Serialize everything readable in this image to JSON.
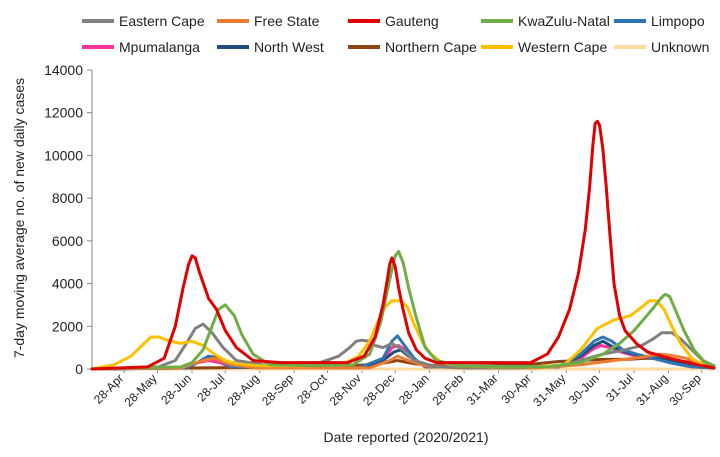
{
  "chart_data": {
    "type": "line",
    "title": "",
    "xlabel": "Date reported (2020/2021)",
    "ylabel": "7-day moving average no. of new daily cases",
    "ylim": [
      0,
      14000
    ],
    "yticks": [
      0,
      2000,
      4000,
      6000,
      8000,
      10000,
      12000,
      14000
    ],
    "ytick_labels": [
      "0",
      "2000",
      "4000",
      "6000",
      "8000",
      "10000",
      "12000",
      "14000"
    ],
    "x_tick_labels": [
      "28-Apr",
      "28-May",
      "28-Jun",
      "28-Jul",
      "28-Aug",
      "28-Sep",
      "28-Oct",
      "28-Nov",
      "28-Dec",
      "28-Jan",
      "28-Feb",
      "31-Mar",
      "30-Apr",
      "31-May",
      "30-Jun",
      "31-Jul",
      "31-Aug",
      "30-Sep"
    ],
    "x_tick_days": [
      29,
      59,
      90,
      120,
      151,
      182,
      212,
      243,
      273,
      304,
      335,
      366,
      396,
      427,
      457,
      488,
      519,
      549
    ],
    "x_axis_note": "x values are days, day 0 = 30-Mar-2020",
    "xlim": [
      0,
      560
    ],
    "grid": false,
    "legend": "top",
    "series": [
      {
        "name": "Eastern Cape",
        "color": "#808080",
        "x": [
          0,
          60,
          75,
          85,
          93,
          100,
          108,
          118,
          130,
          160,
          200,
          222,
          232,
          238,
          243,
          250,
          255,
          262,
          270,
          280,
          290,
          310,
          340,
          380,
          420,
          440,
          460,
          480,
          495,
          505,
          513,
          522,
          530,
          540,
          550,
          560
        ],
        "y": [
          0,
          100,
          400,
          1200,
          1900,
          2100,
          1700,
          1000,
          400,
          150,
          200,
          600,
          1000,
          1300,
          1350,
          1300,
          1100,
          1000,
          1200,
          900,
          400,
          100,
          50,
          50,
          150,
          400,
          700,
          900,
          1100,
          1400,
          1700,
          1700,
          1400,
          900,
          400,
          150
        ]
      },
      {
        "name": "Free State",
        "color": "#ED7D31",
        "x": [
          0,
          80,
          100,
          110,
          125,
          150,
          250,
          268,
          275,
          285,
          300,
          330,
          400,
          440,
          470,
          495,
          510,
          520,
          535,
          550,
          560
        ],
        "y": [
          0,
          50,
          400,
          500,
          200,
          50,
          50,
          400,
          600,
          400,
          150,
          50,
          50,
          200,
          400,
          550,
          700,
          650,
          500,
          250,
          100
        ]
      },
      {
        "name": "Gauteng",
        "color": "#E00000",
        "x": [
          0,
          50,
          65,
          75,
          82,
          87,
          90,
          93,
          97,
          105,
          112,
          120,
          130,
          145,
          170,
          200,
          230,
          245,
          255,
          262,
          266,
          268,
          270,
          273,
          276,
          280,
          285,
          292,
          300,
          310,
          330,
          360,
          395,
          410,
          420,
          430,
          438,
          444,
          448,
          451,
          453,
          455,
          457,
          460,
          463,
          466,
          470,
          475,
          480,
          490,
          500,
          520,
          545,
          560
        ],
        "y": [
          0,
          100,
          500,
          2000,
          3800,
          4900,
          5300,
          5200,
          4500,
          3300,
          2800,
          1800,
          1000,
          400,
          300,
          300,
          300,
          600,
          1500,
          3000,
          4200,
          4900,
          5200,
          4800,
          3800,
          2800,
          1700,
          900,
          500,
          300,
          300,
          300,
          300,
          700,
          1500,
          2800,
          4500,
          6500,
          8500,
          10500,
          11500,
          11600,
          11400,
          10300,
          8500,
          6500,
          4000,
          2500,
          1800,
          1200,
          800,
          500,
          200,
          50
        ]
      },
      {
        "name": "KwaZulu-Natal",
        "color": "#70AD47",
        "x": [
          0,
          80,
          90,
          100,
          108,
          114,
          120,
          128,
          135,
          145,
          160,
          200,
          235,
          250,
          260,
          268,
          273,
          276,
          280,
          285,
          292,
          300,
          310,
          330,
          370,
          410,
          440,
          460,
          475,
          488,
          498,
          506,
          512,
          516,
          520,
          525,
          533,
          542,
          552,
          560
        ],
        "y": [
          0,
          100,
          300,
          900,
          2000,
          2800,
          3000,
          2500,
          1600,
          700,
          200,
          150,
          200,
          700,
          2200,
          4200,
          5300,
          5500,
          5000,
          3800,
          2400,
          1000,
          400,
          150,
          100,
          100,
          300,
          700,
          1200,
          1800,
          2400,
          2900,
          3300,
          3500,
          3400,
          2800,
          1800,
          900,
          300,
          100
        ]
      },
      {
        "name": "Limpopo",
        "color": "#2E75B6",
        "x": [
          0,
          85,
          95,
          105,
          115,
          125,
          240,
          262,
          270,
          275,
          280,
          290,
          300,
          420,
          440,
          452,
          460,
          468,
          478,
          490,
          505,
          520,
          540,
          560
        ],
        "y": [
          0,
          50,
          300,
          600,
          400,
          100,
          50,
          500,
          1300,
          1550,
          1200,
          500,
          100,
          100,
          700,
          1300,
          1500,
          1300,
          900,
          700,
          500,
          300,
          100,
          50
        ]
      },
      {
        "name": "Mpumalanga",
        "color": "#FF3399",
        "x": [
          0,
          85,
          95,
          105,
          115,
          125,
          240,
          262,
          270,
          276,
          282,
          292,
          300,
          420,
          440,
          450,
          458,
          466,
          476,
          490,
          505,
          520,
          540,
          560
        ],
        "y": [
          0,
          50,
          300,
          400,
          300,
          100,
          50,
          400,
          1000,
          1100,
          900,
          400,
          100,
          100,
          500,
          900,
          1100,
          1000,
          800,
          600,
          500,
          300,
          100,
          50
        ]
      },
      {
        "name": "North West",
        "color": "#1F4E79",
        "x": [
          0,
          85,
          95,
          105,
          115,
          125,
          240,
          262,
          272,
          278,
          285,
          295,
          305,
          420,
          440,
          452,
          460,
          470,
          480,
          495,
          510,
          525,
          545,
          560
        ],
        "y": [
          0,
          50,
          300,
          600,
          500,
          150,
          50,
          400,
          800,
          900,
          600,
          300,
          100,
          100,
          600,
          1100,
          1300,
          1000,
          800,
          600,
          500,
          300,
          100,
          50
        ]
      },
      {
        "name": "Northern Cape",
        "color": "#8B4513",
        "x": [
          0,
          100,
          200,
          230,
          250,
          265,
          275,
          290,
          310,
          360,
          400,
          420,
          440,
          460,
          480,
          500,
          520,
          540,
          560
        ],
        "y": [
          0,
          50,
          100,
          150,
          200,
          300,
          400,
          250,
          150,
          150,
          250,
          350,
          400,
          450,
          450,
          500,
          450,
          300,
          150
        ]
      },
      {
        "name": "Western Cape",
        "color": "#FFC000",
        "x": [
          0,
          20,
          35,
          45,
          53,
          60,
          70,
          80,
          90,
          100,
          110,
          120,
          130,
          150,
          170,
          200,
          225,
          240,
          250,
          258,
          264,
          270,
          278,
          284,
          290,
          298,
          305,
          315,
          330,
          360,
          400,
          425,
          440,
          455,
          470,
          485,
          495,
          502,
          508,
          515,
          522,
          530,
          540,
          550,
          560
        ],
        "y": [
          0,
          200,
          600,
          1100,
          1500,
          1500,
          1300,
          1200,
          1300,
          1100,
          700,
          400,
          250,
          150,
          150,
          150,
          200,
          600,
          1300,
          2300,
          2900,
          3200,
          3200,
          2900,
          2100,
          1200,
          700,
          300,
          150,
          100,
          100,
          200,
          900,
          1900,
          2300,
          2500,
          2900,
          3200,
          3200,
          2800,
          2000,
          1200,
          500,
          200,
          100
        ]
      },
      {
        "name": "Unknown",
        "color": "#FFD9A0",
        "x": [
          0,
          560
        ],
        "y": [
          0,
          0
        ]
      }
    ]
  }
}
